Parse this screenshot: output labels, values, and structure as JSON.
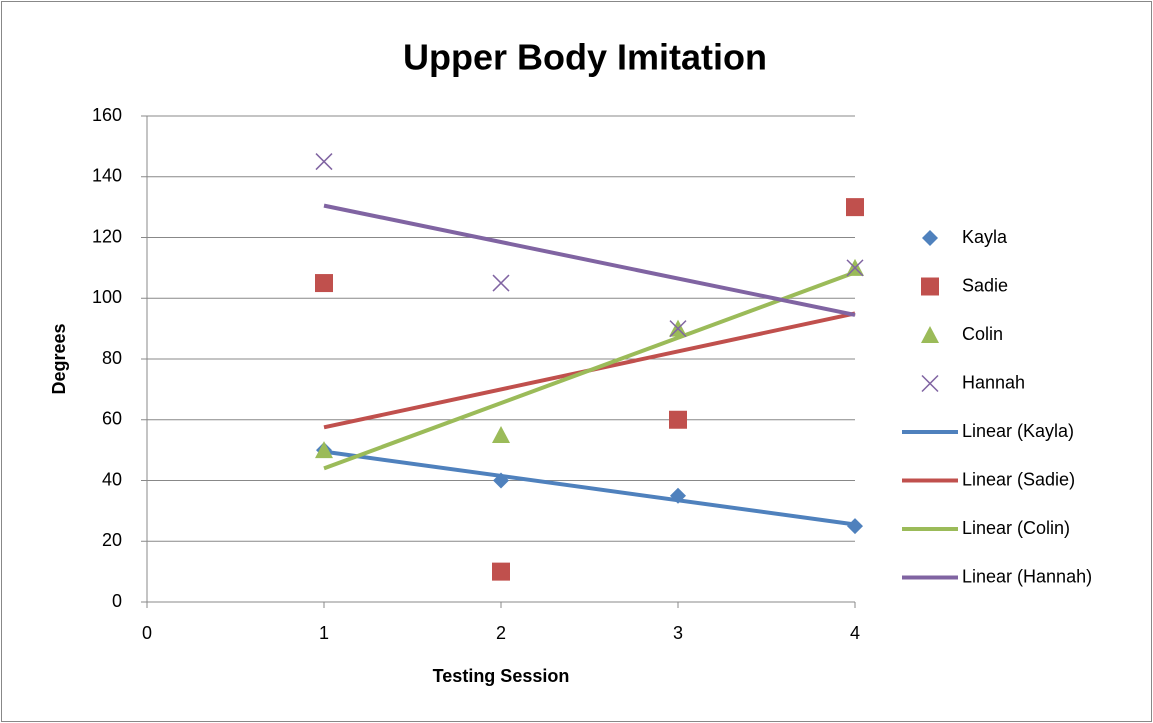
{
  "chart_data": {
    "type": "scatter",
    "title": "Upper Body Imitation",
    "xlabel": "Testing Session",
    "ylabel": "Degrees",
    "xlim": [
      0,
      4
    ],
    "xticks": [
      0,
      1,
      2,
      3,
      4
    ],
    "ylim": [
      0,
      160
    ],
    "yticks": [
      0,
      20,
      40,
      60,
      80,
      100,
      120,
      140,
      160
    ],
    "grid": true,
    "legend": "right",
    "series": [
      {
        "name": "Kayla",
        "color": "#4f81bd",
        "marker": "diamond",
        "x": [
          1,
          2,
          3,
          4
        ],
        "values": [
          50,
          40,
          35,
          25
        ]
      },
      {
        "name": "Sadie",
        "color": "#c0504d",
        "marker": "square",
        "x": [
          1,
          2,
          3,
          4
        ],
        "values": [
          105,
          10,
          60,
          130
        ]
      },
      {
        "name": "Colin",
        "color": "#9bbb59",
        "marker": "triangle",
        "x": [
          1,
          2,
          3,
          4
        ],
        "values": [
          50,
          55,
          90,
          110
        ]
      },
      {
        "name": "Hannah",
        "color": "#8064a2",
        "marker": "x",
        "x": [
          1,
          2,
          3,
          4
        ],
        "values": [
          145,
          105,
          90,
          110
        ]
      },
      {
        "name": "Linear (Kayla)",
        "color": "#4f81bd",
        "marker": "line",
        "x": [
          1,
          4
        ],
        "values": [
          49.5,
          25.5
        ]
      },
      {
        "name": "Linear (Sadie)",
        "color": "#c0504d",
        "marker": "line",
        "x": [
          1,
          4
        ],
        "values": [
          57.5,
          95
        ]
      },
      {
        "name": "Linear (Colin)",
        "color": "#9bbb59",
        "marker": "line",
        "x": [
          1,
          4
        ],
        "values": [
          44,
          108.5
        ]
      },
      {
        "name": "Linear (Hannah)",
        "color": "#8064a2",
        "marker": "line",
        "x": [
          1,
          4
        ],
        "values": [
          130.5,
          94.5
        ]
      }
    ]
  }
}
